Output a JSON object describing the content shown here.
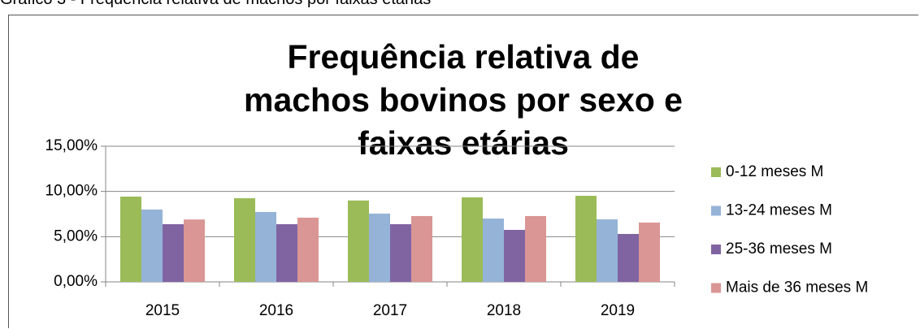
{
  "caption": "Gráfico 3 - Frequência relativa de machos por faixas etárias",
  "chart_data": {
    "type": "bar",
    "title": "Frequência relativa de machos bovinos por sexo e faixas etárias",
    "categories": [
      "2015",
      "2016",
      "2017",
      "2018",
      "2019"
    ],
    "series": [
      {
        "name": "0-12 meses M",
        "color": "#9bbb59",
        "values": [
          9.43,
          9.25,
          9.0,
          9.35,
          9.52
        ]
      },
      {
        "name": "13-24 meses M",
        "color": "#95b3d7",
        "values": [
          8.0,
          7.73,
          7.55,
          7.0,
          6.92
        ]
      },
      {
        "name": "25-36 meses M",
        "color": "#8064a2",
        "values": [
          6.38,
          6.38,
          6.38,
          5.75,
          5.3
        ]
      },
      {
        "name": "Mais de 36 meses M",
        "color": "#d99694",
        "values": [
          6.9,
          7.1,
          7.28,
          7.28,
          6.56
        ]
      }
    ],
    "ylim": [
      0,
      15
    ],
    "yticks": [
      {
        "value": 0,
        "label": "0,00%"
      },
      {
        "value": 5,
        "label": "5,00%"
      },
      {
        "value": 10,
        "label": "10,00%"
      },
      {
        "value": 15,
        "label": "15,00%"
      }
    ],
    "grid": true,
    "legend": "right"
  }
}
